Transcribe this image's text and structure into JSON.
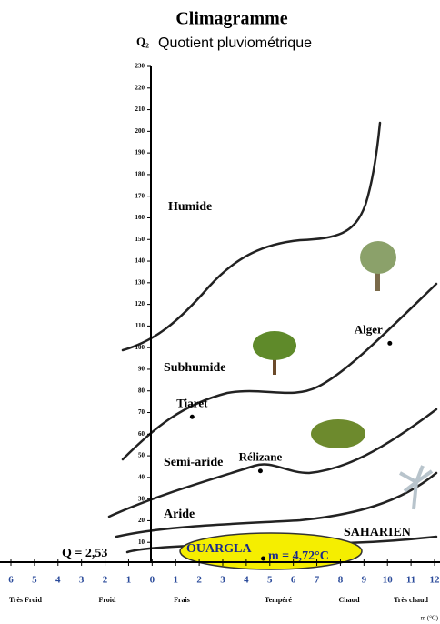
{
  "chart_data": {
    "type": "scatter",
    "title": "Climagramme",
    "y_symbol": "Q₂",
    "y_label": "Quotient pluviométrique",
    "xlim": [
      -6,
      12
    ],
    "ylim": [
      0,
      230
    ],
    "xticks": [
      {
        "value": -6,
        "label": "6"
      },
      {
        "value": -5,
        "label": "5"
      },
      {
        "value": -4,
        "label": "4"
      },
      {
        "value": -3,
        "label": "3"
      },
      {
        "value": -2,
        "label": "2"
      },
      {
        "value": -1,
        "label": "1"
      },
      0,
      1,
      2,
      3,
      4,
      5,
      6,
      7,
      8,
      9,
      10,
      11,
      12
    ],
    "yticks": [
      10,
      20,
      30,
      40,
      50,
      60,
      70,
      80,
      90,
      100,
      110,
      120,
      130,
      140,
      150,
      160,
      170,
      180,
      190,
      200,
      210,
      220,
      230
    ],
    "x_unit": "m (°C)",
    "temperature_classes": [
      "Très Froid",
      "Froid",
      "Frais",
      "Tempéré",
      "Chaud",
      "Très chaud"
    ],
    "zones": [
      "Humide",
      "Subhumide",
      "Semi-aride",
      "Aride",
      "SAHARIEN"
    ],
    "stations": [
      {
        "name": "Tiaret",
        "x": 1.7,
        "y": 68
      },
      {
        "name": "Alger",
        "x": 10.1,
        "y": 102
      },
      {
        "name": "Rélizane",
        "x": 4.6,
        "y": 43
      },
      {
        "name": "OUARGLA",
        "x": 4.72,
        "y": 2.53
      }
    ],
    "ouargla_m_label": "m = 4,72°C",
    "ouargla_q_label": "Q = 2,53",
    "color": "#000000"
  }
}
